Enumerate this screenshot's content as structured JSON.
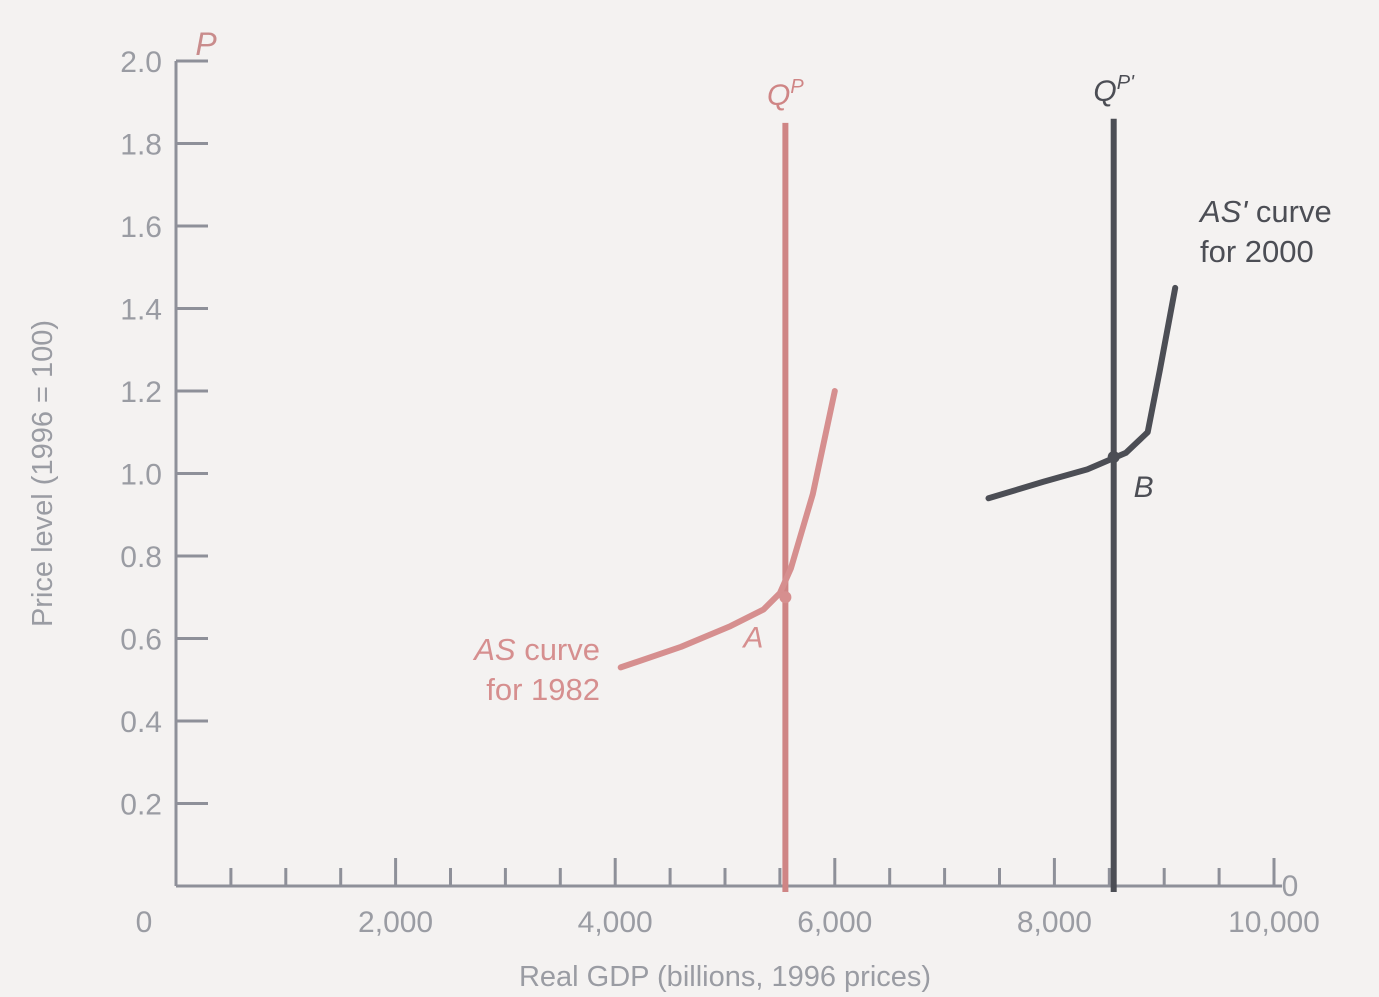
{
  "chart_data": {
    "type": "line",
    "xlabel": "Real GDP (billions, 1996 prices)",
    "ylabel": "Price level (1996 = 100)",
    "y_axis_letter": "P",
    "xlim": [
      0,
      10000
    ],
    "ylim": [
      0,
      2.0
    ],
    "x_origin_label": "0",
    "right_axis_zero_label": "0",
    "x_ticks": [
      {
        "value": 2000,
        "label": "2,000"
      },
      {
        "value": 4000,
        "label": "4,000"
      },
      {
        "value": 6000,
        "label": "6,000"
      },
      {
        "value": 8000,
        "label": "8,000"
      },
      {
        "value": 10000,
        "label": "10,000"
      }
    ],
    "x_minor_step": 500,
    "y_ticks": [
      {
        "value": 0.2,
        "label": "0.2"
      },
      {
        "value": 0.4,
        "label": "0.4"
      },
      {
        "value": 0.6,
        "label": "0.6"
      },
      {
        "value": 0.8,
        "label": "0.8"
      },
      {
        "value": 1.0,
        "label": "1.0"
      },
      {
        "value": 1.2,
        "label": "1.2"
      },
      {
        "value": 1.4,
        "label": "1.4"
      },
      {
        "value": 1.6,
        "label": "1.6"
      },
      {
        "value": 1.8,
        "label": "1.8"
      },
      {
        "value": 2.0,
        "label": "2.0"
      }
    ],
    "series": [
      {
        "key": "as_1982",
        "label_italic": "AS",
        "label_rest": " curve",
        "label_line2": "for 1982",
        "color": "#d68f8f",
        "points": [
          [
            4050,
            0.53
          ],
          [
            4600,
            0.58
          ],
          [
            5050,
            0.63
          ],
          [
            5350,
            0.67
          ],
          [
            5500,
            0.71
          ],
          [
            5600,
            0.77
          ],
          [
            5800,
            0.95
          ],
          [
            6000,
            1.2
          ]
        ]
      },
      {
        "key": "as_2000",
        "label_italic": "AS'",
        "label_rest": " curve",
        "label_line2": "for 2000",
        "color": "#4c4e55",
        "points": [
          [
            7400,
            0.94
          ],
          [
            7900,
            0.98
          ],
          [
            8300,
            1.01
          ],
          [
            8650,
            1.05
          ],
          [
            8850,
            1.1
          ],
          [
            8960,
            1.25
          ],
          [
            9100,
            1.45
          ]
        ]
      }
    ],
    "vertical_lines": [
      {
        "key": "qp_1982",
        "x": 5550,
        "y_top": 1.85,
        "label_base": "Q",
        "label_sup": "P",
        "color": "#cf8585"
      },
      {
        "key": "qp_2000",
        "x": 8540,
        "y_top": 1.86,
        "label_base": "Q",
        "label_sup": "P'",
        "color": "#4c4e55"
      }
    ],
    "points": [
      {
        "key": "A",
        "label": "A",
        "x": 5550,
        "y": 0.7,
        "color": "#d68f8f"
      },
      {
        "key": "B",
        "label": "B",
        "x": 8540,
        "y": 1.04,
        "color": "#4c4e55"
      }
    ],
    "grid": false
  }
}
